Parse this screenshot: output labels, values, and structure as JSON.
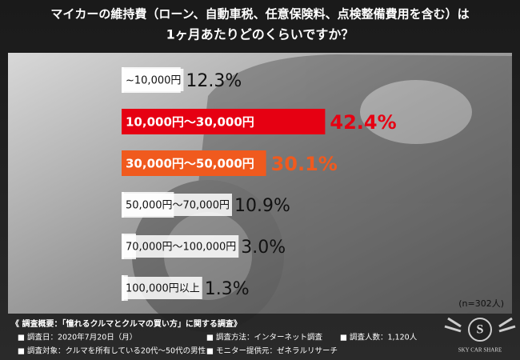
{
  "chart_data": {
    "type": "bar",
    "title": "マイカーの維持費（ローン、自動車税、任意保険料、点検整備費用を含む）は",
    "subtitle": "1ヶ月あたりどのくらいですか？",
    "categories": [
      "~10,000円",
      "10,000円～30,000円",
      "30,000円～50,000円",
      "50,000円～70,000円",
      "70,000円～100,000円",
      "100,000円以上"
    ],
    "values": [
      12.3,
      42.4,
      30.1,
      10.9,
      3.0,
      1.3
    ],
    "value_labels": [
      "12.3%",
      "42.4%",
      "30.1%",
      "10.9%",
      "3.0%",
      "1.3%"
    ],
    "colors": [
      "#ffffff",
      "#e60012",
      "#f05a1e",
      "#ffffff",
      "#ffffff",
      "#ffffff"
    ],
    "annotation": "(n=302人)"
  },
  "footer": {
    "heading": "《 調査概要：「憧れるクルマとクルマの買い方」に関する調査》",
    "items": [
      "■ 調査日：2020年7月20日（月）",
      "■ 調査方法：インターネット調査",
      "■ 調査人数：1,120人",
      "■ 調査対象：クルマを所有している20代～50代の男性",
      "■ モニター提供元：ゼネラルリサーチ"
    ],
    "logo_letter": "S",
    "logo_text": "SKY CAR SHARE"
  }
}
